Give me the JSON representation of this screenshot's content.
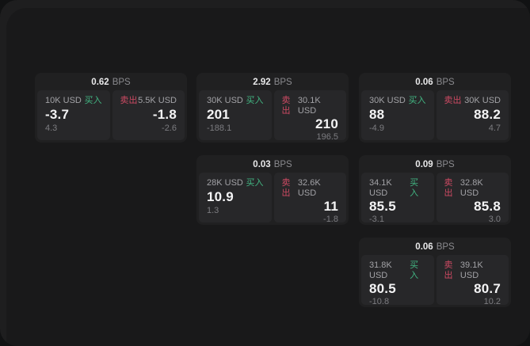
{
  "labels": {
    "bps": "BPS",
    "buy": "买入",
    "sell": "卖出"
  },
  "colors": {
    "buy": "#42b582",
    "sell": "#cd4a63",
    "background": "#19191a",
    "card": "#202021",
    "tile": "#272729"
  },
  "cards": [
    {
      "bps": "0.62",
      "buy": {
        "amount": "10K USD",
        "price": "-3.7",
        "delta": "4.3"
      },
      "sell": {
        "amount": "5.5K USD",
        "price": "-1.8",
        "delta": "-2.6"
      }
    },
    {
      "bps": "2.92",
      "buy": {
        "amount": "30K USD",
        "price": "201",
        "delta": "-188.1"
      },
      "sell": {
        "amount": "30.1K USD",
        "price": "210",
        "delta": "196.5"
      }
    },
    {
      "bps": "0.06",
      "buy": {
        "amount": "30K USD",
        "price": "88",
        "delta": "-4.9"
      },
      "sell": {
        "amount": "30K USD",
        "price": "88.2",
        "delta": "4.7"
      }
    },
    {
      "bps": "0.03",
      "buy": {
        "amount": "28K USD",
        "price": "10.9",
        "delta": "1.3"
      },
      "sell": {
        "amount": "32.6K USD",
        "price": "11",
        "delta": "-1.8"
      }
    },
    {
      "bps": "0.09",
      "buy": {
        "amount": "34.1K USD",
        "price": "85.5",
        "delta": "-3.1"
      },
      "sell": {
        "amount": "32.8K USD",
        "price": "85.8",
        "delta": "3.0"
      }
    },
    {
      "bps": "0.06",
      "buy": {
        "amount": "31.8K USD",
        "price": "80.5",
        "delta": "-10.8"
      },
      "sell": {
        "amount": "39.1K USD",
        "price": "80.7",
        "delta": "10.2"
      }
    }
  ]
}
